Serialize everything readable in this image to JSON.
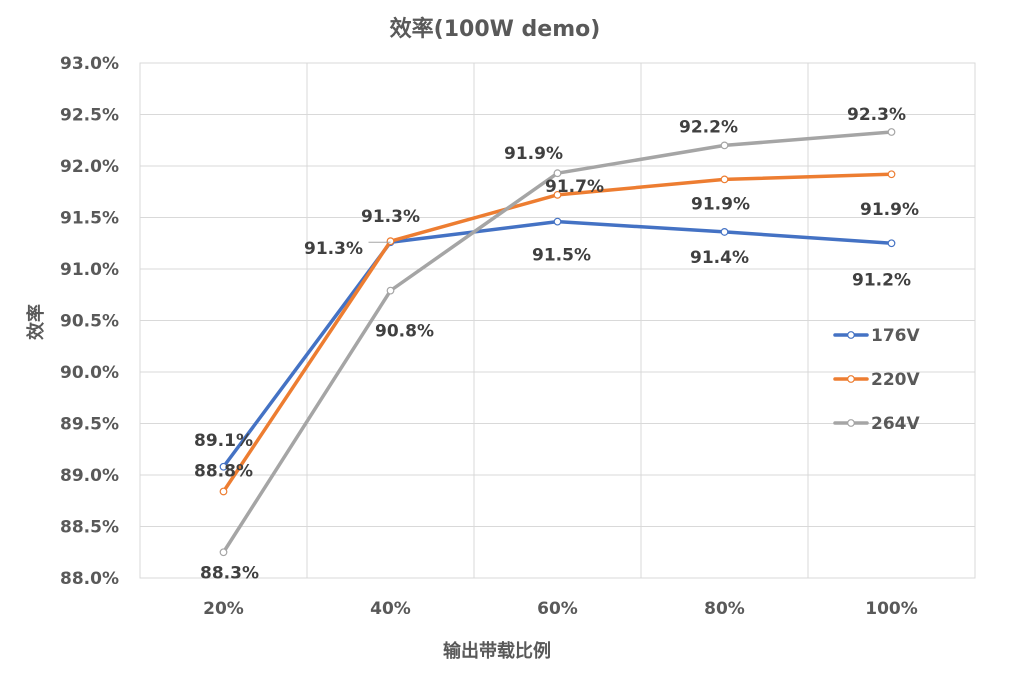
{
  "chart_data": {
    "type": "line",
    "title": "效率(100W demo)",
    "xlabel": "输出带载比例",
    "ylabel": "效率",
    "categories": [
      "20%",
      "40%",
      "60%",
      "80%",
      "100%"
    ],
    "ylim": [
      88.0,
      93.0
    ],
    "yticks": [
      "93.0%",
      "92.5%",
      "92.0%",
      "91.5%",
      "91.0%",
      "90.5%",
      "90.0%",
      "89.5%",
      "89.0%",
      "88.5%",
      "88.0%"
    ],
    "grid": true,
    "legend_position": "right",
    "series": [
      {
        "name": "176V",
        "color": "#4472C4",
        "values": [
          89.08,
          91.26,
          91.46,
          91.36,
          91.25
        ],
        "labels": [
          "89.1%",
          "91.3%",
          "91.5%",
          "91.4%",
          "91.2%"
        ]
      },
      {
        "name": "220V",
        "color": "#ED7D31",
        "values": [
          88.84,
          91.27,
          91.72,
          91.87,
          91.92
        ],
        "labels": [
          "88.8%",
          "91.3%",
          "91.7%",
          "91.9%",
          "91.9%"
        ]
      },
      {
        "name": "264V",
        "color": "#A5A5A5",
        "values": [
          88.25,
          90.79,
          91.93,
          92.2,
          92.33
        ],
        "labels": [
          "88.3%",
          "90.8%",
          "91.9%",
          "92.2%",
          "92.3%"
        ]
      }
    ]
  }
}
